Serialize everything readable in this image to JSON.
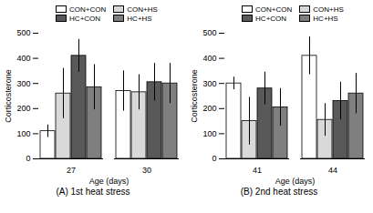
{
  "chart_data": [
    {
      "type": "bar",
      "title": "(A) 1st heat stress",
      "x_label": "Age (days)",
      "y_label": "Corticosterone",
      "categories": [
        "27",
        "30"
      ],
      "series": [
        {
          "name": "CON+CON",
          "color": "#ffffff",
          "values": [
            110,
            270
          ],
          "errors": [
            25,
            80
          ]
        },
        {
          "name": "CON+HS",
          "color": "#d9d9d9",
          "values": [
            260,
            265
          ],
          "errors": [
            100,
            70
          ]
        },
        {
          "name": "HC+CON",
          "color": "#595959",
          "values": [
            410,
            305
          ],
          "errors": [
            65,
            75
          ]
        },
        {
          "name": "HC+HS",
          "color": "#7f7f7f",
          "values": [
            285,
            300
          ],
          "errors": [
            90,
            80
          ]
        }
      ],
      "ylim": [
        0,
        500
      ],
      "yticks": [
        0,
        100,
        200,
        300,
        400,
        500
      ],
      "grid": false,
      "legend": "top"
    },
    {
      "type": "bar",
      "title": "(B) 2nd heat stress",
      "x_label": "Age (days)",
      "y_label": "Corticosterone",
      "categories": [
        "41",
        "44"
      ],
      "series": [
        {
          "name": "CON+CON",
          "color": "#ffffff",
          "values": [
            300,
            410
          ],
          "errors": [
            25,
            75
          ]
        },
        {
          "name": "CON+HS",
          "color": "#d9d9d9",
          "values": [
            150,
            155
          ],
          "errors": [
            95,
            65
          ]
        },
        {
          "name": "HC+CON",
          "color": "#595959",
          "values": [
            280,
            230
          ],
          "errors": [
            65,
            75
          ]
        },
        {
          "name": "HC+HS",
          "color": "#7f7f7f",
          "values": [
            205,
            260
          ],
          "errors": [
            75,
            80
          ]
        }
      ],
      "ylim": [
        0,
        500
      ],
      "yticks": [
        0,
        100,
        200,
        300,
        400,
        500
      ],
      "grid": false,
      "legend": "top"
    }
  ]
}
